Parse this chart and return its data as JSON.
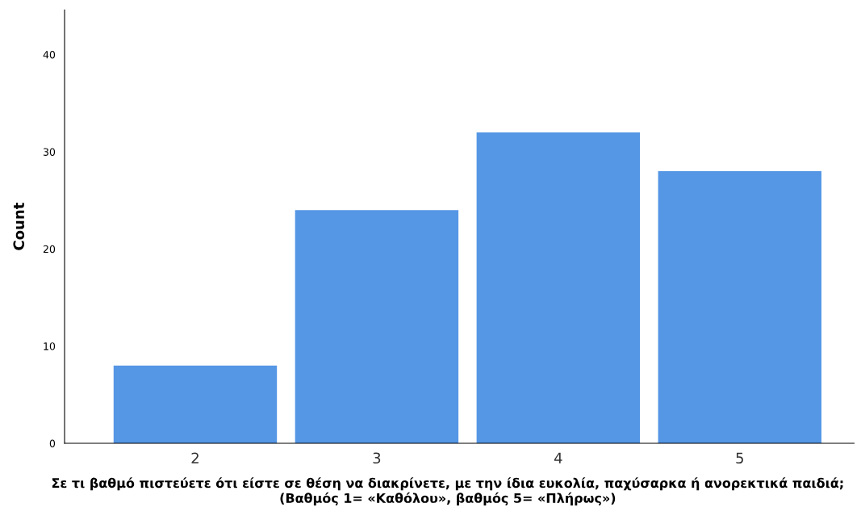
{
  "chart_data": {
    "type": "bar",
    "xlabel": "Σε τι βαθμό πιστεύετε ότι είστε σε θέση να διακρίνετε, με την ίδια ευκολία, παχύσαρκα ή ανορεκτικά παιδιά; (Βαθμός 1= «Καθόλου», βαθμός 5= «Πλήρως»)",
    "ylabel": "Count",
    "categories": [
      "2",
      "3",
      "4",
      "5"
    ],
    "values": [
      8,
      24,
      32,
      28
    ],
    "color": "#5596e5",
    "ylim": [
      0,
      44.6
    ],
    "yticks": [
      0,
      10,
      20,
      30,
      40
    ],
    "grid": false
  }
}
